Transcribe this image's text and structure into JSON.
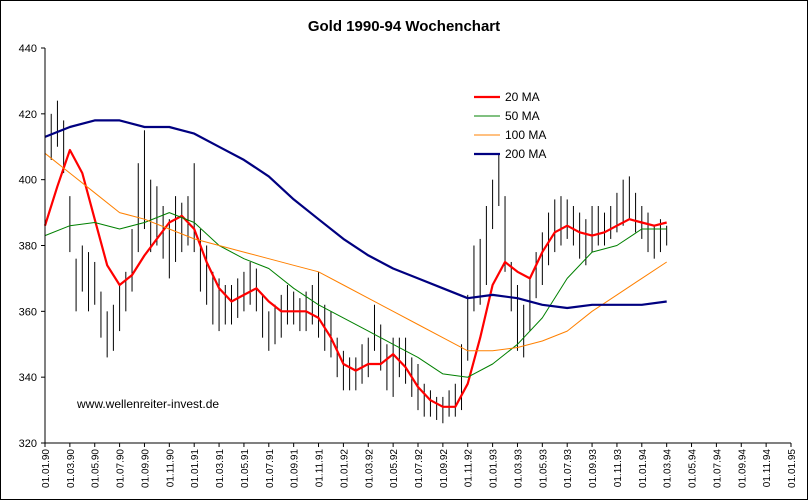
{
  "chart_data": {
    "type": "line",
    "title": "Gold 1990-94 Wochenchart",
    "watermark": "www.wellenreiter-invest.de",
    "ylim": [
      320,
      440
    ],
    "y_ticks": [
      320,
      340,
      360,
      380,
      400,
      420,
      440
    ],
    "x_tick_labels": [
      "01.01.90",
      "01.03.90",
      "01.05.90",
      "01.07.90",
      "01.09.90",
      "01.11.90",
      "01.01.91",
      "01.03.91",
      "01.05.91",
      "01.07.91",
      "01.09.91",
      "01.11.91",
      "01.01.92",
      "01.03.92",
      "01.05.92",
      "01.07.92",
      "01.09.92",
      "01.11.92",
      "01.01.93",
      "01.03.93",
      "01.05.93",
      "01.07.93",
      "01.09.93",
      "01.11.93",
      "01.01.94",
      "01.03.94",
      "01.05.94",
      "01.07.94",
      "01.09.94",
      "01.11.94",
      "01.01.95"
    ],
    "grid": false,
    "legend_position": "top-center",
    "x_axis_unit": "month index from 01.01.90",
    "price_bars": {
      "type": "weekly high-low bars",
      "color": "#000000",
      "points": [
        {
          "x": 0,
          "low": 395,
          "high": 412
        },
        {
          "x": 0.5,
          "low": 406,
          "high": 420
        },
        {
          "x": 1,
          "low": 410,
          "high": 424
        },
        {
          "x": 1.5,
          "low": 402,
          "high": 418
        },
        {
          "x": 2,
          "low": 378,
          "high": 395
        },
        {
          "x": 2.5,
          "low": 360,
          "high": 376
        },
        {
          "x": 3,
          "low": 366,
          "high": 380
        },
        {
          "x": 3.5,
          "low": 360,
          "high": 378
        },
        {
          "x": 4,
          "low": 362,
          "high": 375
        },
        {
          "x": 4.5,
          "low": 352,
          "high": 366
        },
        {
          "x": 5,
          "low": 346,
          "high": 360
        },
        {
          "x": 5.5,
          "low": 348,
          "high": 362
        },
        {
          "x": 6,
          "low": 354,
          "high": 368
        },
        {
          "x": 6.5,
          "low": 360,
          "high": 372
        },
        {
          "x": 7,
          "low": 366,
          "high": 385
        },
        {
          "x": 7.5,
          "low": 378,
          "high": 405
        },
        {
          "x": 8,
          "low": 385,
          "high": 415
        },
        {
          "x": 8.5,
          "low": 378,
          "high": 400
        },
        {
          "x": 9,
          "low": 380,
          "high": 398
        },
        {
          "x": 9.5,
          "low": 376,
          "high": 392
        },
        {
          "x": 10,
          "low": 370,
          "high": 388
        },
        {
          "x": 10.5,
          "low": 375,
          "high": 395
        },
        {
          "x": 11,
          "low": 378,
          "high": 393
        },
        {
          "x": 11.5,
          "low": 380,
          "high": 395
        },
        {
          "x": 12,
          "low": 378,
          "high": 405
        },
        {
          "x": 12.5,
          "low": 366,
          "high": 385
        },
        {
          "x": 13,
          "low": 362,
          "high": 380
        },
        {
          "x": 13.5,
          "low": 356,
          "high": 372
        },
        {
          "x": 14,
          "low": 354,
          "high": 370
        },
        {
          "x": 14.5,
          "low": 356,
          "high": 368
        },
        {
          "x": 15,
          "low": 356,
          "high": 368
        },
        {
          "x": 15.5,
          "low": 358,
          "high": 370
        },
        {
          "x": 16,
          "low": 360,
          "high": 372
        },
        {
          "x": 16.5,
          "low": 362,
          "high": 375
        },
        {
          "x": 17,
          "low": 360,
          "high": 373
        },
        {
          "x": 17.5,
          "low": 352,
          "high": 365
        },
        {
          "x": 18,
          "low": 348,
          "high": 360
        },
        {
          "x": 18.5,
          "low": 350,
          "high": 362
        },
        {
          "x": 19,
          "low": 352,
          "high": 365
        },
        {
          "x": 19.5,
          "low": 356,
          "high": 368
        },
        {
          "x": 20,
          "low": 356,
          "high": 366
        },
        {
          "x": 20.5,
          "low": 354,
          "high": 364
        },
        {
          "x": 21,
          "low": 354,
          "high": 366
        },
        {
          "x": 21.5,
          "low": 356,
          "high": 368
        },
        {
          "x": 22,
          "low": 352,
          "high": 372
        },
        {
          "x": 22.5,
          "low": 348,
          "high": 362
        },
        {
          "x": 23,
          "low": 346,
          "high": 360
        },
        {
          "x": 23.5,
          "low": 340,
          "high": 352
        },
        {
          "x": 24,
          "low": 336,
          "high": 348
        },
        {
          "x": 24.5,
          "low": 336,
          "high": 346
        },
        {
          "x": 25,
          "low": 336,
          "high": 346
        },
        {
          "x": 25.5,
          "low": 338,
          "high": 350
        },
        {
          "x": 26,
          "low": 340,
          "high": 352
        },
        {
          "x": 26.5,
          "low": 348,
          "high": 362
        },
        {
          "x": 27,
          "low": 342,
          "high": 356
        },
        {
          "x": 27.5,
          "low": 336,
          "high": 350
        },
        {
          "x": 28,
          "low": 334,
          "high": 352
        },
        {
          "x": 28.5,
          "low": 340,
          "high": 352
        },
        {
          "x": 29,
          "low": 338,
          "high": 352
        },
        {
          "x": 29.5,
          "low": 334,
          "high": 346
        },
        {
          "x": 30,
          "low": 330,
          "high": 344
        },
        {
          "x": 30.5,
          "low": 328,
          "high": 338
        },
        {
          "x": 31,
          "low": 328,
          "high": 336
        },
        {
          "x": 31.5,
          "low": 327,
          "high": 334
        },
        {
          "x": 32,
          "low": 326,
          "high": 334
        },
        {
          "x": 32.5,
          "low": 328,
          "high": 336
        },
        {
          "x": 33,
          "low": 328,
          "high": 338
        },
        {
          "x": 33.5,
          "low": 330,
          "high": 350
        },
        {
          "x": 34,
          "low": 345,
          "high": 365
        },
        {
          "x": 34.5,
          "low": 360,
          "high": 380
        },
        {
          "x": 35,
          "low": 362,
          "high": 382
        },
        {
          "x": 35.5,
          "low": 368,
          "high": 392
        },
        {
          "x": 36,
          "low": 385,
          "high": 400
        },
        {
          "x": 36.5,
          "low": 392,
          "high": 408
        },
        {
          "x": 37,
          "low": 372,
          "high": 395
        },
        {
          "x": 37.5,
          "low": 360,
          "high": 375
        },
        {
          "x": 38,
          "low": 348,
          "high": 368
        },
        {
          "x": 38.5,
          "low": 346,
          "high": 362
        },
        {
          "x": 39,
          "low": 354,
          "high": 370
        },
        {
          "x": 39.5,
          "low": 364,
          "high": 378
        },
        {
          "x": 40,
          "low": 368,
          "high": 384
        },
        {
          "x": 40.5,
          "low": 374,
          "high": 390
        },
        {
          "x": 41,
          "low": 378,
          "high": 394
        },
        {
          "x": 41.5,
          "low": 380,
          "high": 395
        },
        {
          "x": 42,
          "low": 382,
          "high": 394
        },
        {
          "x": 42.5,
          "low": 380,
          "high": 392
        },
        {
          "x": 43,
          "low": 376,
          "high": 390
        },
        {
          "x": 43.5,
          "low": 374,
          "high": 388
        },
        {
          "x": 44,
          "low": 378,
          "high": 392
        },
        {
          "x": 44.5,
          "low": 380,
          "high": 392
        },
        {
          "x": 45,
          "low": 380,
          "high": 390
        },
        {
          "x": 45.5,
          "low": 382,
          "high": 392
        },
        {
          "x": 46,
          "low": 384,
          "high": 396
        },
        {
          "x": 46.5,
          "low": 386,
          "high": 400
        },
        {
          "x": 47,
          "low": 388,
          "high": 401
        },
        {
          "x": 47.5,
          "low": 384,
          "high": 396
        },
        {
          "x": 48,
          "low": 382,
          "high": 392
        },
        {
          "x": 48.5,
          "low": 378,
          "high": 390
        },
        {
          "x": 49,
          "low": 376,
          "high": 386
        },
        {
          "x": 49.5,
          "low": 378,
          "high": 388
        },
        {
          "x": 50,
          "low": 380,
          "high": 386
        }
      ]
    },
    "series": [
      {
        "name": "20 MA",
        "color": "#ff0000",
        "width": 2.2,
        "points": [
          [
            0,
            386
          ],
          [
            1,
            398
          ],
          [
            2,
            409
          ],
          [
            3,
            402
          ],
          [
            4,
            388
          ],
          [
            5,
            374
          ],
          [
            6,
            368
          ],
          [
            7,
            371
          ],
          [
            8,
            377
          ],
          [
            9,
            382
          ],
          [
            10,
            387
          ],
          [
            11,
            389
          ],
          [
            12,
            385
          ],
          [
            13,
            375
          ],
          [
            14,
            367
          ],
          [
            15,
            363
          ],
          [
            16,
            365
          ],
          [
            17,
            367
          ],
          [
            18,
            363
          ],
          [
            19,
            360
          ],
          [
            20,
            360
          ],
          [
            21,
            360
          ],
          [
            22,
            358
          ],
          [
            23,
            352
          ],
          [
            24,
            344
          ],
          [
            25,
            342
          ],
          [
            26,
            344
          ],
          [
            27,
            344
          ],
          [
            28,
            347
          ],
          [
            29,
            343
          ],
          [
            30,
            337
          ],
          [
            31,
            333
          ],
          [
            32,
            331
          ],
          [
            33,
            331
          ],
          [
            34,
            338
          ],
          [
            35,
            352
          ],
          [
            36,
            368
          ],
          [
            37,
            375
          ],
          [
            38,
            372
          ],
          [
            39,
            370
          ],
          [
            40,
            378
          ],
          [
            41,
            384
          ],
          [
            42,
            386
          ],
          [
            43,
            384
          ],
          [
            44,
            383
          ],
          [
            45,
            384
          ],
          [
            46,
            386
          ],
          [
            47,
            388
          ],
          [
            48,
            387
          ],
          [
            49,
            386
          ],
          [
            50,
            387
          ]
        ]
      },
      {
        "name": "50 MA",
        "color": "#008000",
        "width": 1,
        "points": [
          [
            0,
            383
          ],
          [
            2,
            386
          ],
          [
            4,
            387
          ],
          [
            6,
            385
          ],
          [
            8,
            387
          ],
          [
            10,
            390
          ],
          [
            12,
            387
          ],
          [
            14,
            380
          ],
          [
            16,
            376
          ],
          [
            18,
            373
          ],
          [
            20,
            367
          ],
          [
            22,
            362
          ],
          [
            24,
            358
          ],
          [
            26,
            354
          ],
          [
            28,
            350
          ],
          [
            30,
            346
          ],
          [
            32,
            341
          ],
          [
            34,
            340
          ],
          [
            36,
            344
          ],
          [
            38,
            350
          ],
          [
            40,
            358
          ],
          [
            42,
            370
          ],
          [
            44,
            378
          ],
          [
            46,
            380
          ],
          [
            48,
            385
          ],
          [
            50,
            385
          ]
        ]
      },
      {
        "name": "100 MA",
        "color": "#ff8000",
        "width": 1,
        "points": [
          [
            0,
            408
          ],
          [
            2,
            402
          ],
          [
            4,
            396
          ],
          [
            6,
            390
          ],
          [
            8,
            388
          ],
          [
            10,
            385
          ],
          [
            12,
            382
          ],
          [
            14,
            380
          ],
          [
            16,
            378
          ],
          [
            18,
            376
          ],
          [
            20,
            374
          ],
          [
            22,
            372
          ],
          [
            24,
            368
          ],
          [
            26,
            364
          ],
          [
            28,
            360
          ],
          [
            30,
            356
          ],
          [
            32,
            352
          ],
          [
            34,
            348
          ],
          [
            36,
            348
          ],
          [
            38,
            349
          ],
          [
            40,
            351
          ],
          [
            42,
            354
          ],
          [
            44,
            360
          ],
          [
            46,
            365
          ],
          [
            48,
            370
          ],
          [
            50,
            375
          ]
        ]
      },
      {
        "name": "200 MA",
        "color": "#000080",
        "width": 2.2,
        "points": [
          [
            0,
            413
          ],
          [
            2,
            416
          ],
          [
            4,
            418
          ],
          [
            6,
            418
          ],
          [
            8,
            416
          ],
          [
            10,
            416
          ],
          [
            12,
            414
          ],
          [
            14,
            410
          ],
          [
            16,
            406
          ],
          [
            18,
            401
          ],
          [
            20,
            394
          ],
          [
            22,
            388
          ],
          [
            24,
            382
          ],
          [
            26,
            377
          ],
          [
            28,
            373
          ],
          [
            30,
            370
          ],
          [
            32,
            367
          ],
          [
            34,
            364
          ],
          [
            36,
            365
          ],
          [
            38,
            364
          ],
          [
            40,
            362
          ],
          [
            42,
            361
          ],
          [
            44,
            362
          ],
          [
            46,
            362
          ],
          [
            48,
            362
          ],
          [
            50,
            363
          ]
        ]
      }
    ]
  }
}
